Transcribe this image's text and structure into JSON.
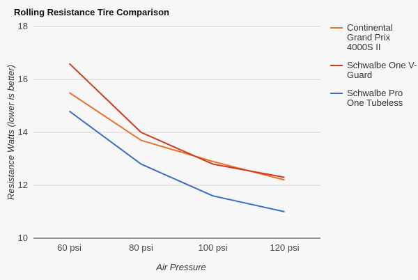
{
  "chart_data": {
    "type": "line",
    "title": "Rolling Resistance Tire Comparison",
    "xlabel": "Air Pressure",
    "ylabel": "Resistance Watts (lower is better)",
    "categories": [
      "60 psi",
      "80 psi",
      "100 psi",
      "120 psi"
    ],
    "ylim": [
      10,
      18
    ],
    "yticks": [
      10,
      12,
      14,
      16,
      18
    ],
    "grid": true,
    "legend_position": "right",
    "series": [
      {
        "name": "Continental Grand Prix 4000S II",
        "legend_lines": [
          "Continental",
          "Grand Prix",
          "4000S II"
        ],
        "color": "#e8722a",
        "values": [
          15.5,
          13.7,
          12.9,
          12.2
        ]
      },
      {
        "name": "Schwalbe One V-Guard",
        "legend_lines": [
          "Schwalbe One V-",
          "Guard"
        ],
        "color": "#d03a1c",
        "values": [
          16.6,
          14.0,
          12.8,
          12.3
        ]
      },
      {
        "name": "Schwalbe Pro One Tubeless",
        "legend_lines": [
          "Schwalbe Pro",
          "One Tubeless"
        ],
        "color": "#3b6bc9",
        "values": [
          14.8,
          12.8,
          11.6,
          11.0
        ]
      }
    ]
  }
}
